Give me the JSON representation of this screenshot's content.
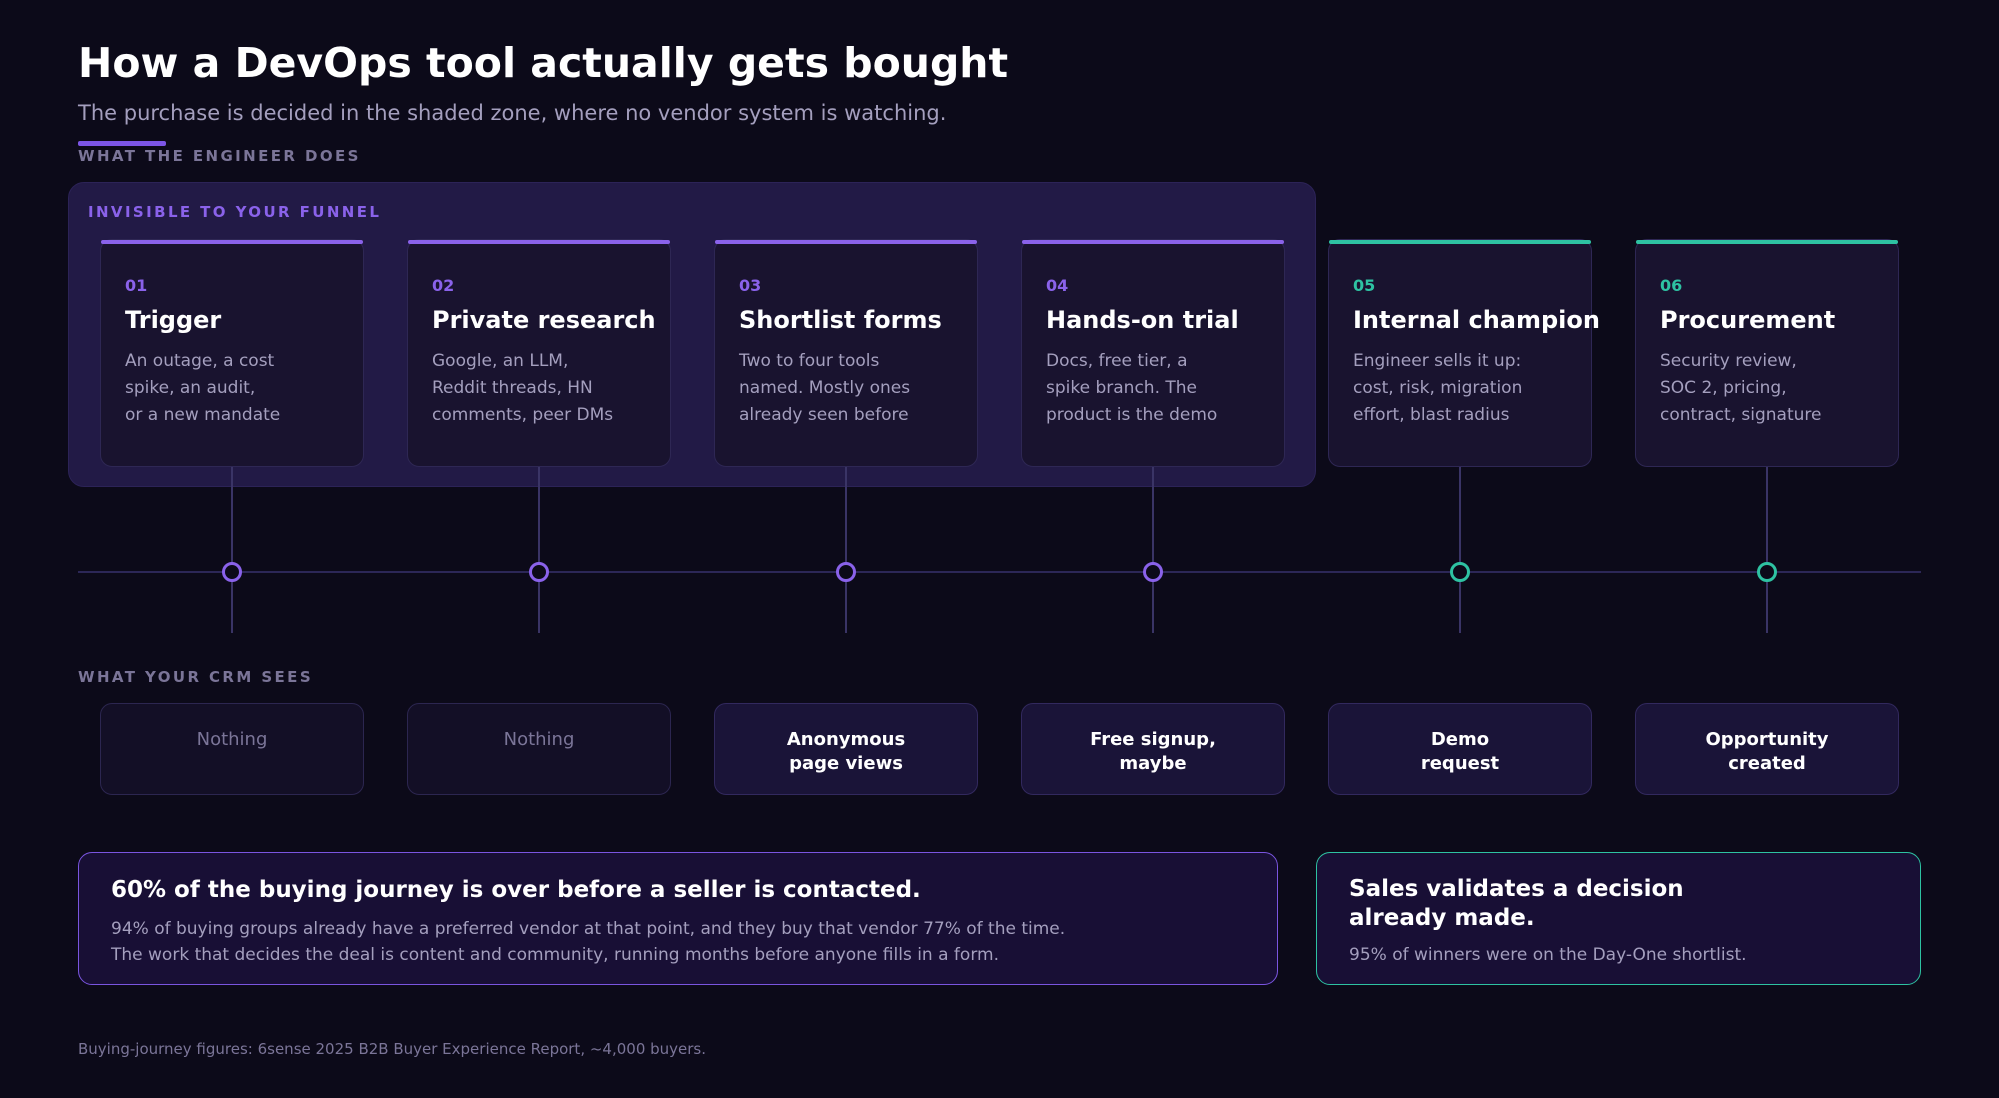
{
  "header": {
    "title": "How a DevOps tool actually gets bought",
    "subtitle": "The purchase is decided in the shaded zone, where no vendor system is watching."
  },
  "labels": {
    "engineer_section": "WHAT THE ENGINEER DOES",
    "invisible_zone": "INVISIBLE TO YOUR FUNNEL",
    "crm_section": "WHAT YOUR CRM SEES"
  },
  "colors": {
    "background": "#0c0a19",
    "invisible_accent": "#8a62ea",
    "visible_accent": "#2ec2a2"
  },
  "steps": [
    {
      "num": "01",
      "title": "Trigger",
      "desc": [
        "An outage, a cost",
        "spike, an audit,",
        "or a new mandate"
      ],
      "zone": "invisible"
    },
    {
      "num": "02",
      "title": "Private research",
      "desc": [
        "Google, an LLM,",
        "Reddit threads, HN",
        "comments, peer DMs"
      ],
      "zone": "invisible"
    },
    {
      "num": "03",
      "title": "Shortlist forms",
      "desc": [
        "Two to four tools",
        "named. Mostly ones",
        "already seen before"
      ],
      "zone": "invisible"
    },
    {
      "num": "04",
      "title": "Hands-on trial",
      "desc": [
        "Docs, free tier, a",
        "spike branch. The",
        "product is the demo"
      ],
      "zone": "invisible"
    },
    {
      "num": "05",
      "title": "Internal champion",
      "desc": [
        "Engineer sells it up:",
        "cost, risk, migration",
        "effort, blast radius"
      ],
      "zone": "visible"
    },
    {
      "num": "06",
      "title": "Procurement",
      "desc": [
        "Security review,",
        "SOC 2, pricing,",
        "contract, signature"
      ],
      "zone": "visible"
    }
  ],
  "crm": [
    {
      "lines": [
        "Nothing"
      ],
      "muted": true
    },
    {
      "lines": [
        "Nothing"
      ],
      "muted": true
    },
    {
      "lines": [
        "Anonymous",
        "page views"
      ],
      "muted": false
    },
    {
      "lines": [
        "Free signup,",
        "maybe"
      ],
      "muted": false
    },
    {
      "lines": [
        "Demo",
        "request"
      ],
      "muted": false
    },
    {
      "lines": [
        "Opportunity",
        "created"
      ],
      "muted": false
    }
  ],
  "callouts": {
    "left": {
      "head": "60% of the buying journey is over before a seller is contacted.",
      "body1": "94% of buying groups already have a preferred vendor at that point, and they buy that vendor 77% of the time.",
      "body2": "The work that decides the deal is content and community, running months before anyone fills in a form."
    },
    "right": {
      "head1": "Sales validates a decision",
      "head2": "already made.",
      "body": "95% of winners were on the Day-One shortlist."
    }
  },
  "footnote": "Buying-journey figures: 6sense 2025 B2B Buyer Experience Report, ~4,000 buyers."
}
